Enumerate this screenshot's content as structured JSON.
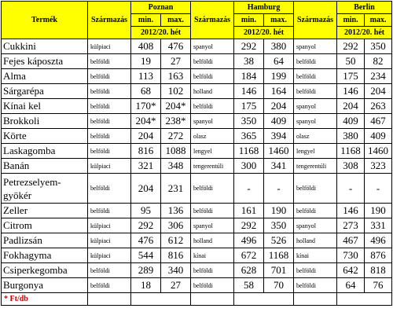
{
  "header": {
    "product": "Termék",
    "origin": "Származás",
    "min": "min.",
    "max": "max.",
    "week": "2012/20. hét",
    "cities": [
      "Poznan",
      "Hamburg",
      "Berlin"
    ]
  },
  "rows": [
    {
      "name": "Cukkini",
      "p": [
        "külpiaci",
        "408",
        "476"
      ],
      "h": [
        "spanyol",
        "292",
        "380"
      ],
      "b": [
        "spanyol",
        "292",
        "350"
      ]
    },
    {
      "name": "Fejes káposzta",
      "p": [
        "belföldi",
        "19",
        "27"
      ],
      "h": [
        "belföldi",
        "38",
        "64"
      ],
      "b": [
        "belföldi",
        "50",
        "82"
      ]
    },
    {
      "name": "Alma",
      "p": [
        "belföldi",
        "113",
        "163"
      ],
      "h": [
        "belföldi",
        "184",
        "199"
      ],
      "b": [
        "belföldi",
        "175",
        "234"
      ]
    },
    {
      "name": "Sárgarépa",
      "p": [
        "belföldi",
        "68",
        "102"
      ],
      "h": [
        "holland",
        "146",
        "164"
      ],
      "b": [
        "belföldi",
        "146",
        "204"
      ]
    },
    {
      "name": "Kínai kel",
      "p": [
        "belföldi",
        "170*",
        "204*"
      ],
      "h": [
        "belföldi",
        "175",
        "204"
      ],
      "b": [
        "spanyol",
        "204",
        "263"
      ]
    },
    {
      "name": "Brokkoli",
      "p": [
        "belföldi",
        "204*",
        "238*"
      ],
      "h": [
        "spanyol",
        "350",
        "409"
      ],
      "b": [
        "spanyol",
        "409",
        "467"
      ]
    },
    {
      "name": "Körte",
      "p": [
        "belföldi",
        "204",
        "272"
      ],
      "h": [
        "olasz",
        "365",
        "394"
      ],
      "b": [
        "olasz",
        "380",
        "409"
      ]
    },
    {
      "name": "Laskagomba",
      "p": [
        "belföldi",
        "816",
        "1088"
      ],
      "h": [
        "lengyel",
        "1168",
        "1460"
      ],
      "b": [
        "lengyel",
        "1168",
        "1460"
      ]
    },
    {
      "name": "Banán",
      "p": [
        "külpiaci",
        "321",
        "348"
      ],
      "h": [
        "tengerentúli",
        "300",
        "341"
      ],
      "b": [
        "tengerentúli",
        "308",
        "323"
      ]
    },
    {
      "name": "Petrezselyem-gyökér",
      "p": [
        "belföldi",
        "204",
        "231"
      ],
      "h": [
        "belföldi",
        "-",
        "-"
      ],
      "b": [
        "belföldi",
        "-",
        "-"
      ],
      "tall": true
    },
    {
      "name": "Zeller",
      "p": [
        "belföldi",
        "95",
        "136"
      ],
      "h": [
        "belföldi",
        "161",
        "190"
      ],
      "b": [
        "belföldi",
        "146",
        "190"
      ]
    },
    {
      "name": "Citrom",
      "p": [
        "külpiaci",
        "292",
        "306"
      ],
      "h": [
        "spanyol",
        "292",
        "350"
      ],
      "b": [
        "spanyol",
        "273",
        "331"
      ]
    },
    {
      "name": "Padlizsán",
      "p": [
        "külpiaci",
        "476",
        "612"
      ],
      "h": [
        "holland",
        "496",
        "526"
      ],
      "b": [
        "holland",
        "467",
        "496"
      ]
    },
    {
      "name": "Fokhagyma",
      "p": [
        "külpiaci",
        "544",
        "816"
      ],
      "h": [
        "kínai",
        "672",
        "1168"
      ],
      "b": [
        "kínai",
        "730",
        "876"
      ]
    },
    {
      "name": "Csiperkegomba",
      "p": [
        "belföldi",
        "289",
        "340"
      ],
      "h": [
        "belföldi",
        "628",
        "701"
      ],
      "b": [
        "belföldi",
        "642",
        "818"
      ]
    },
    {
      "name": "Burgonya",
      "p": [
        "belföldi",
        "18",
        "27"
      ],
      "h": [
        "belföldi",
        "58",
        "70"
      ],
      "b": [
        "belföldi",
        "64",
        "76"
      ]
    }
  ],
  "footnote": "* Ft/db"
}
